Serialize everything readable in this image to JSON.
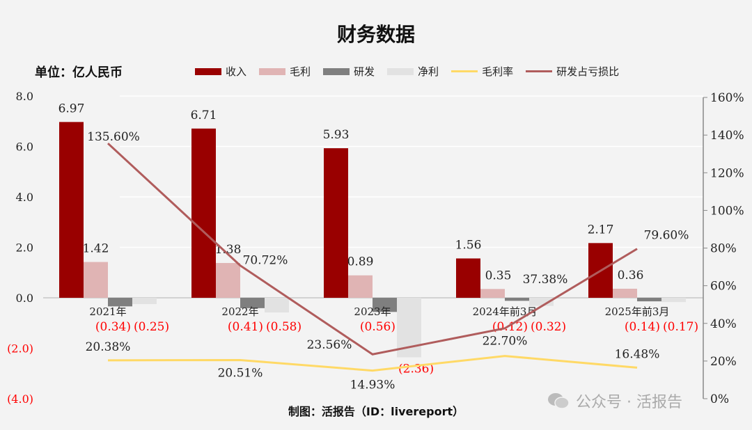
{
  "title": "财务数据",
  "unit": "单位：亿人民币",
  "footer": "制图：活报告（ID：livereport）",
  "watermark": "公众号 · 活报告",
  "colors": {
    "revenue": "#990000",
    "gross": "#e0b4b4",
    "rd": "#7f7f7f",
    "net": "#e2e2e2",
    "margin": "#ffd966",
    "ratio": "#b05c5c",
    "negative": "#ff0000"
  },
  "chart_data": {
    "type": "bar",
    "title": "财务数据",
    "categories": [
      "2021年",
      "2022年",
      "2023年",
      "2024年前3月",
      "2025年前3月"
    ],
    "left_axis": {
      "ylim": [
        -4,
        8
      ],
      "ticks": [
        "(4.0)",
        "(2.0)",
        "0.0",
        "2.0",
        "4.0",
        "6.0",
        "8.0"
      ],
      "tick_values": [
        -4,
        -2,
        0,
        2,
        4,
        6,
        8
      ]
    },
    "right_axis": {
      "ylim": [
        0,
        160
      ],
      "ticks": [
        "0%",
        "20%",
        "40%",
        "60%",
        "80%",
        "100%",
        "120%",
        "140%",
        "160%"
      ],
      "tick_values": [
        0,
        20,
        40,
        60,
        80,
        100,
        120,
        140,
        160
      ]
    },
    "grid": true,
    "legend_position": "top",
    "series": [
      {
        "name": "收入",
        "type": "bar",
        "values": [
          6.97,
          6.71,
          5.93,
          1.56,
          2.17
        ],
        "labels": [
          "6.97",
          "6.71",
          "5.93",
          "1.56",
          "2.17"
        ]
      },
      {
        "name": "毛利",
        "type": "bar",
        "values": [
          1.42,
          1.38,
          0.89,
          0.35,
          0.36
        ],
        "labels": [
          "1.42",
          "1.38",
          "0.89",
          "0.35",
          "0.36"
        ]
      },
      {
        "name": "研发",
        "type": "bar",
        "values": [
          -0.34,
          -0.41,
          -0.56,
          -0.12,
          -0.14
        ],
        "labels": [
          "(0.34)",
          "(0.41)",
          "(0.56)",
          "(0.12)",
          "(0.14)"
        ]
      },
      {
        "name": "净利",
        "type": "bar",
        "values": [
          -0.25,
          -0.58,
          -2.36,
          -0.32,
          -0.17
        ],
        "labels": [
          "(0.25)",
          "(0.58)",
          "(2.36)",
          "(0.32)",
          "(0.17)"
        ]
      },
      {
        "name": "毛利率",
        "type": "line",
        "axis": "right",
        "values": [
          20.38,
          20.51,
          14.93,
          22.7,
          16.48
        ],
        "labels": [
          "20.38%",
          "20.51%",
          "14.93%",
          "22.70%",
          "16.48%"
        ]
      },
      {
        "name": "研发占亏损比",
        "type": "line",
        "axis": "right",
        "values": [
          135.6,
          70.72,
          23.56,
          37.38,
          79.6
        ],
        "labels": [
          "135.60%",
          "70.72%",
          "23.56%",
          "37.38%",
          "79.60%"
        ]
      }
    ]
  }
}
